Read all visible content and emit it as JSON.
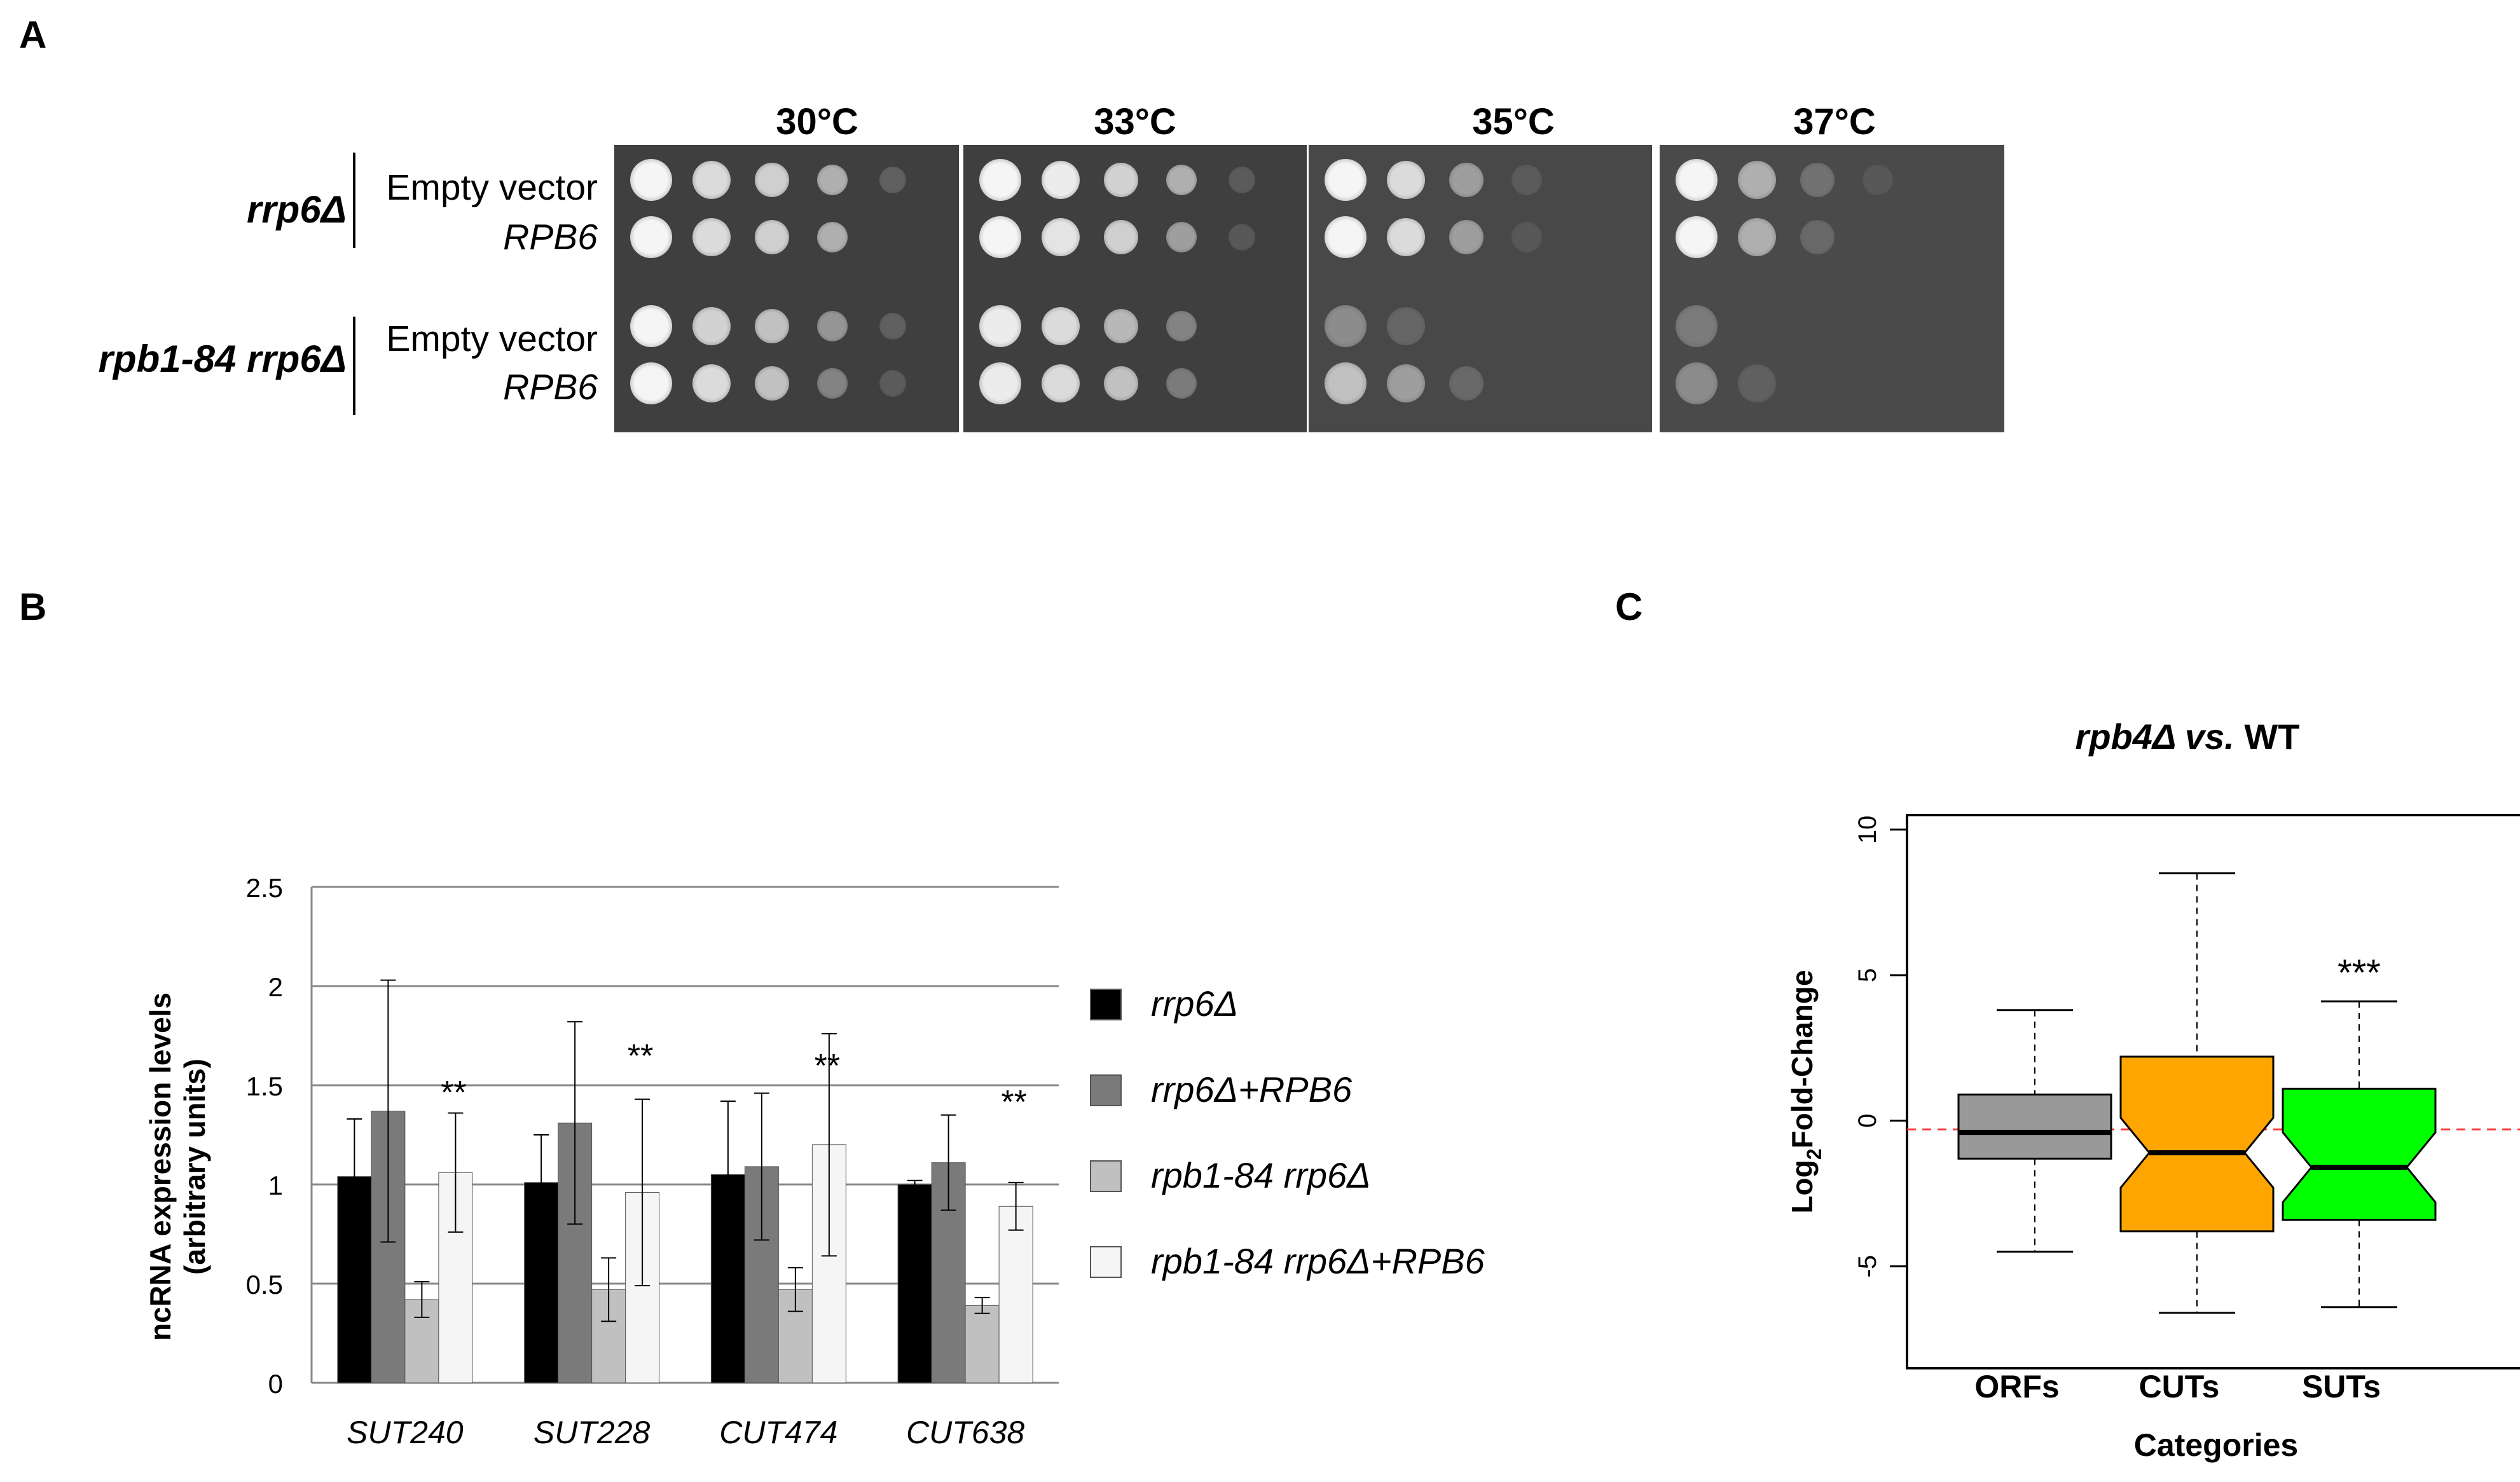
{
  "panel_a": {
    "label": "A",
    "temperatures": [
      "30°C",
      "33°C",
      "35°C",
      "37°C"
    ],
    "strains": [
      {
        "name": "rrp6Δ",
        "conditions": [
          "Empty vector",
          "RPB6"
        ]
      },
      {
        "name": "rpb1-84 rrp6Δ",
        "conditions": [
          "Empty vector",
          "RPB6"
        ]
      }
    ]
  },
  "panel_b": {
    "label": "B",
    "chart_data": {
      "type": "bar",
      "ylabel": "ncRNA expression levels (arbitrary units)",
      "ylabel_line1": "ncRNA expression levels",
      "ylabel_line2": "(arbitrary units)",
      "ylim": [
        0,
        2.5
      ],
      "yticks": [
        "0",
        "0.5",
        "1",
        "1.5",
        "2",
        "2.5"
      ],
      "grid": true,
      "legend_position": "right",
      "categories": [
        "SUT240",
        "SUT228",
        "CUT474",
        "CUT638"
      ],
      "series": [
        {
          "name": "rrp6Δ",
          "color": "#000000",
          "values": [
            1.04,
            1.01,
            1.05,
            1.0
          ],
          "errors": [
            0.29,
            0.24,
            0.37,
            0.02
          ]
        },
        {
          "name": "rrp6Δ+RPB6",
          "color": "#7a7a7a",
          "values": [
            1.37,
            1.31,
            1.09,
            1.11
          ],
          "errors": [
            0.66,
            0.51,
            0.37,
            0.24
          ]
        },
        {
          "name": "rpb1-84 rrp6Δ",
          "color": "#c0c0c0",
          "values": [
            0.42,
            0.47,
            0.47,
            0.39
          ],
          "errors": [
            0.09,
            0.16,
            0.11,
            0.04
          ]
        },
        {
          "name": "rpb1-84 rrp6Δ+RPB6",
          "color": "#f5f5f5",
          "values": [
            1.06,
            0.96,
            1.2,
            0.89
          ],
          "errors": [
            0.3,
            0.47,
            0.56,
            0.12
          ]
        }
      ],
      "annotations": [
        "**",
        "**",
        "**",
        "**"
      ]
    }
  },
  "panel_c": {
    "label": "C",
    "chart_data": {
      "type": "box",
      "title_italic": "rpb4Δ vs.",
      "title_plain": " WT",
      "xlabel": "Categories",
      "ylabel_main": "Log",
      "ylabel_sub": "2",
      "ylabel_rest": "Fold-Change",
      "ylim": [
        -8.5,
        10.5
      ],
      "yticks": [
        "-5",
        "0",
        "5",
        "10"
      ],
      "reference_line": -0.3,
      "categories": [
        "ORFs",
        "CUTs",
        "SUTs"
      ],
      "boxes": [
        {
          "name": "ORFs",
          "color": "#999999",
          "min": -4.5,
          "q1": -1.3,
          "median": -0.4,
          "q3": 0.9,
          "max": 3.8,
          "annotation": ""
        },
        {
          "name": "CUTs",
          "color": "#ffa500",
          "min": -6.6,
          "q1": -3.8,
          "median": -1.1,
          "q3": 2.2,
          "max": 8.5,
          "annotation": ""
        },
        {
          "name": "SUTs",
          "color": "#00ff00",
          "min": -6.4,
          "q1": -3.4,
          "median": -1.6,
          "q3": 1.1,
          "max": 4.1,
          "annotation": "***"
        }
      ]
    }
  }
}
